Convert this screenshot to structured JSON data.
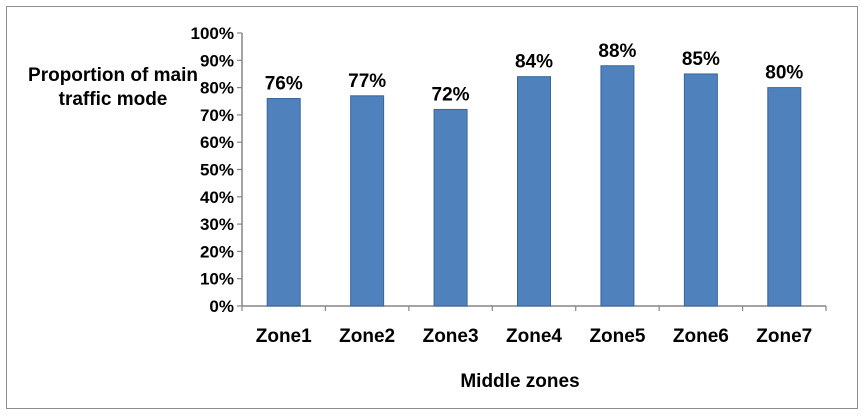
{
  "chart_data": {
    "type": "bar",
    "categories": [
      "Zone1",
      "Zone2",
      "Zone3",
      "Zone4",
      "Zone5",
      "Zone6",
      "Zone7"
    ],
    "values": [
      76,
      77,
      72,
      84,
      88,
      85,
      80
    ],
    "data_labels": [
      "76%",
      "77%",
      "72%",
      "84%",
      "88%",
      "85%",
      "80%"
    ],
    "ylabel": "Proportion of main traffic mode",
    "xlabel": "Middle zones",
    "ylim": [
      0,
      100
    ],
    "yticks": [
      "0%",
      "10%",
      "20%",
      "30%",
      "40%",
      "50%",
      "60%",
      "70%",
      "80%",
      "90%",
      "100%"
    ],
    "grid": false,
    "legend": "none",
    "bar_color": "#4f81bd",
    "bar_edge_color": "#3a6599"
  }
}
